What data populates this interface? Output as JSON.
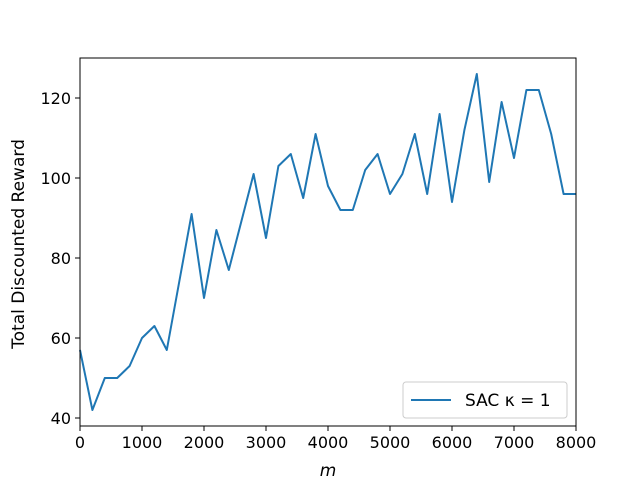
{
  "chart_data": {
    "type": "line",
    "xlabel": "m",
    "ylabel": "Total Discounted Reward",
    "xlim": [
      0,
      8000
    ],
    "ylim": [
      38,
      130
    ],
    "x_ticks": [
      0,
      1000,
      2000,
      3000,
      4000,
      5000,
      6000,
      7000,
      8000
    ],
    "y_ticks": [
      40,
      60,
      80,
      100,
      120
    ],
    "grid": false,
    "legend_position": "lower-right",
    "series": [
      {
        "name": "SAC κ = 1",
        "color": "#1f77b4",
        "x": [
          0,
          200,
          400,
          600,
          800,
          1000,
          1200,
          1400,
          1600,
          1800,
          2000,
          2200,
          2400,
          2600,
          2800,
          3000,
          3200,
          3400,
          3600,
          3800,
          4000,
          4200,
          4400,
          4600,
          4800,
          5000,
          5200,
          5400,
          5600,
          5800,
          6000,
          6200,
          6400,
          6600,
          6800,
          7000,
          7200,
          7400,
          7600,
          7800,
          8000
        ],
        "y": [
          57,
          42,
          50,
          50,
          53,
          60,
          63,
          57,
          74,
          91,
          70,
          87,
          77,
          89,
          101,
          85,
          103,
          106,
          95,
          111,
          98,
          92,
          92,
          102,
          106,
          96,
          101,
          111,
          96,
          116,
          94,
          112,
          126,
          99,
          119,
          105,
          122,
          122,
          111,
          96,
          96
        ]
      }
    ]
  }
}
